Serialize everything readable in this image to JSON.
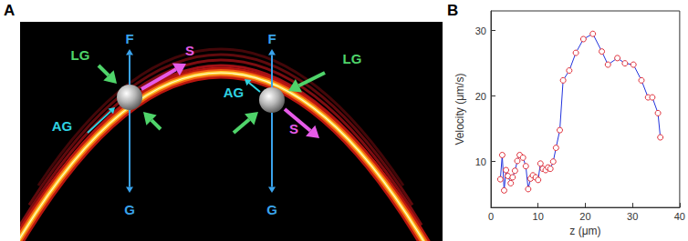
{
  "panels": {
    "a": {
      "label": "A",
      "force_labels": {
        "up": "F",
        "down": "G",
        "lg": "LG",
        "ag": "AG",
        "s": "S"
      }
    },
    "b": {
      "label": "B"
    }
  },
  "chart_data": {
    "type": "line",
    "x_label": "z (μm)",
    "y_label": "Velocity (μm/s)",
    "x": [
      2.0,
      2.4,
      2.8,
      3.2,
      3.6,
      4.2,
      4.6,
      5.1,
      5.6,
      6.1,
      6.8,
      7.4,
      7.9,
      8.4,
      8.9,
      9.5,
      10.0,
      10.5,
      11.0,
      11.6,
      12.1,
      12.6,
      13.2,
      13.8,
      14.6,
      15.3,
      16.6,
      18.0,
      19.6,
      21.6,
      23.5,
      24.8,
      26.8,
      28.4,
      30.2,
      31.9,
      33.3,
      34.2,
      35.4,
      35.9
    ],
    "values": [
      7.3,
      11.0,
      5.6,
      8.7,
      7.8,
      6.7,
      7.6,
      8.6,
      10.1,
      11.0,
      10.6,
      9.3,
      5.8,
      7.4,
      7.9,
      7.6,
      7.2,
      9.7,
      8.9,
      8.7,
      9.1,
      8.9,
      10.0,
      12.1,
      14.8,
      22.4,
      23.9,
      26.6,
      28.7,
      29.5,
      26.8,
      24.8,
      25.8,
      25.0,
      24.8,
      22.4,
      19.8,
      19.8,
      17.4,
      13.7
    ],
    "color": "#2233dd",
    "marker": "circle",
    "xlim": [
      0,
      40
    ],
    "xticks": [
      0,
      10,
      20,
      30,
      40
    ],
    "ylim": [
      3,
      33
    ],
    "yticks": [
      10,
      20,
      30
    ],
    "grid": false
  }
}
